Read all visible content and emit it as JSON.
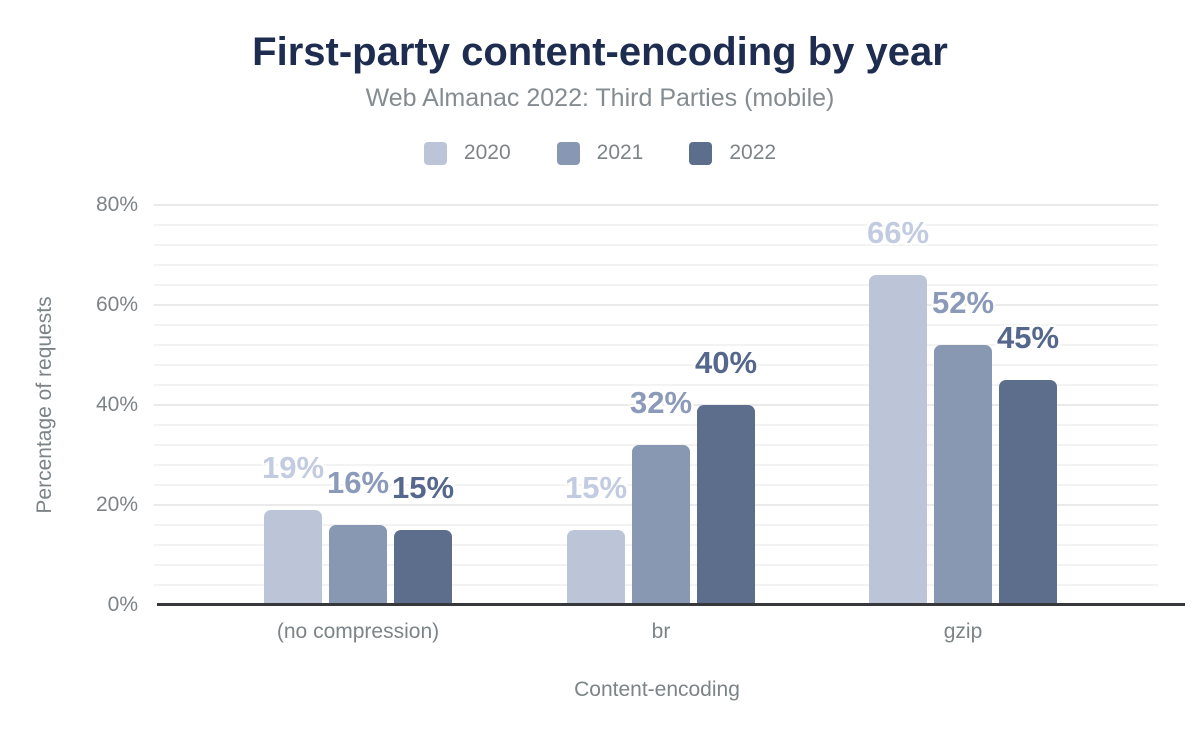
{
  "chart_data": {
    "type": "bar",
    "title": "First-party content-encoding by year",
    "subtitle": "Web Almanac 2022: Third Parties (mobile)",
    "xlabel": "Content-encoding",
    "ylabel": "Percentage of requests",
    "categories": [
      "(no compression)",
      "br",
      "gzip"
    ],
    "series": [
      {
        "name": "2020",
        "color": "#bcc5d7",
        "label_color": "#c2cbdf",
        "values": [
          19,
          15,
          66
        ],
        "labels": [
          "19%",
          "15%",
          "66%"
        ]
      },
      {
        "name": "2021",
        "color": "#8897b2",
        "label_color": "#8b9ab9",
        "values": [
          16,
          32,
          52
        ],
        "labels": [
          "16%",
          "32%",
          "52%"
        ]
      },
      {
        "name": "2022",
        "color": "#5d6e8d",
        "label_color": "#55678c",
        "values": [
          15,
          40,
          45
        ],
        "labels": [
          "15%",
          "40%",
          "45%"
        ]
      }
    ],
    "ylim": [
      0,
      80
    ],
    "y_ticks": [
      "0%",
      "20%",
      "40%",
      "60%",
      "80%"
    ],
    "y_tick_values": [
      0,
      20,
      40,
      60,
      80
    ],
    "grid": {
      "minor_interval": 4,
      "major_interval": 20,
      "minor_color": "#f3f3f3",
      "major_color": "#eaeaea",
      "visible": true
    },
    "legend_position": "top",
    "colors": {
      "title": "#1e2c50",
      "subtitle": "#858c91",
      "axis_text": "#7d8488",
      "axis_line": "#37383b",
      "background": "#ffffff"
    }
  }
}
